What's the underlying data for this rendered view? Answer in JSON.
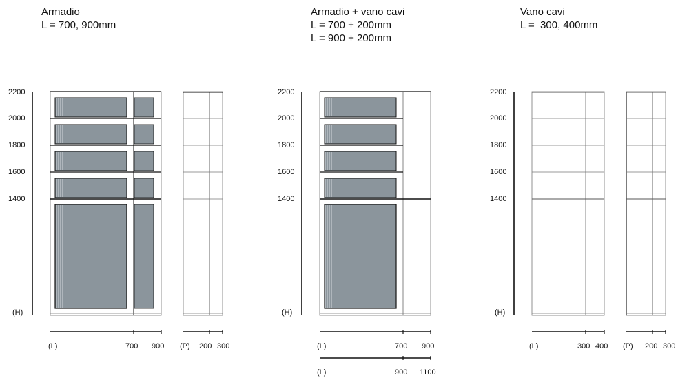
{
  "panels": [
    {
      "title": "Armadio",
      "subtitle": [
        "L = 700, 900mm"
      ],
      "height_ticks": [
        "2200",
        "2000",
        "1800",
        "1600",
        "1400"
      ],
      "height_label": "(H)",
      "width_axes": [
        {
          "labels": [
            "(L)",
            "700",
            "900"
          ]
        }
      ],
      "depth_axis": {
        "labels": [
          "(P)",
          "200",
          "300"
        ]
      }
    },
    {
      "title": "Armadio + vano cavi",
      "subtitle": [
        "L = 700 + 200mm",
        "L = 900 + 200mm"
      ],
      "height_ticks": [
        "2200",
        "2000",
        "1800",
        "1600",
        "1400"
      ],
      "height_label": "(H)",
      "width_axes": [
        {
          "labels": [
            "(L)",
            "700",
            "900"
          ]
        },
        {
          "labels": [
            "(L)",
            "900",
            "1100"
          ]
        }
      ]
    },
    {
      "title": "Vano cavi",
      "subtitle": [
        "L =  300, 400mm"
      ],
      "height_ticks": [
        "2200",
        "2000",
        "1800",
        "1600",
        "1400"
      ],
      "height_label": "(H)",
      "width_axes": [
        {
          "labels": [
            "(L)",
            "300",
            "400"
          ]
        }
      ],
      "depth_axis": {
        "labels": [
          "(P)",
          "200",
          "300"
        ]
      }
    }
  ],
  "colors": {
    "line": "#111111",
    "thin_line": "#777777",
    "panel_fill": "#8b959c",
    "panel_light": "#c9cfd3"
  }
}
